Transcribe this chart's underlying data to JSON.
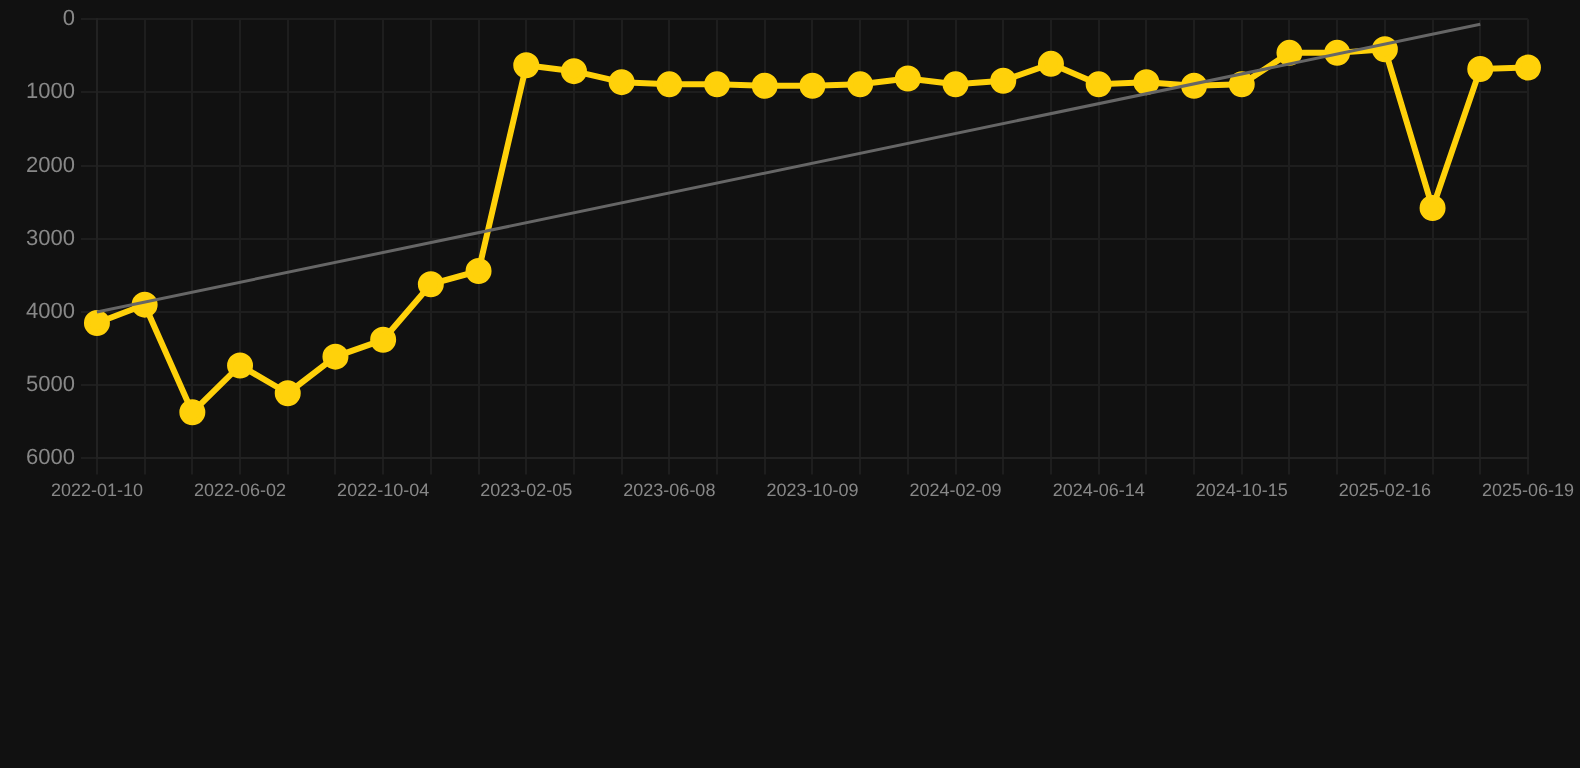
{
  "chart_data": {
    "type": "line",
    "categories": [
      "2022-01-10",
      null,
      null,
      "2022-06-02",
      null,
      null,
      "2022-10-04",
      null,
      null,
      "2023-02-05",
      null,
      null,
      "2023-06-08",
      null,
      null,
      "2023-10-09",
      null,
      null,
      "2024-02-09",
      null,
      null,
      "2024-06-14",
      null,
      null,
      "2024-10-15",
      null,
      null,
      "2025-02-16",
      null,
      null,
      "2025-06-19"
    ],
    "series": [
      {
        "color": "#ffd10a",
        "values": [
          4150,
          3900,
          5370,
          4730,
          5110,
          4610,
          4380,
          3620,
          3440,
          630,
          710,
          860,
          890,
          890,
          910,
          910,
          890,
          810,
          890,
          840,
          610,
          890,
          860,
          910,
          890,
          460,
          460,
          410,
          2580,
          680,
          660
        ],
        "marker": "circle"
      },
      {
        "type": "line",
        "color": "#666666",
        "marker": "none",
        "values": [
          4000,
          null,
          null,
          null,
          null,
          null,
          null,
          null,
          null,
          null,
          null,
          null,
          null,
          null,
          null,
          null,
          null,
          null,
          null,
          null,
          null,
          null,
          null,
          null,
          null,
          null,
          null,
          null,
          null,
          70,
          null
        ]
      }
    ],
    "ylim": [
      6000,
      0
    ],
    "yticks": [
      0,
      1000,
      2000,
      3000,
      4000,
      5000,
      6000
    ],
    "grid": true,
    "legend": false,
    "line_style": "solid"
  }
}
